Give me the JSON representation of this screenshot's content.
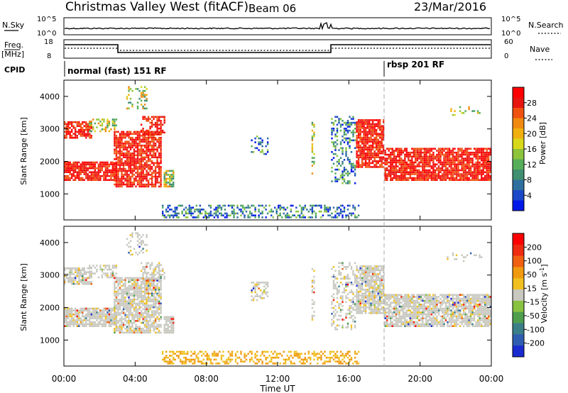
{
  "header": {
    "title": "Christmas Valley West (fitACF)",
    "beam": "Beam 06",
    "date": "23/Mar/2016"
  },
  "top_panels": {
    "nsky_label": "N.Sky",
    "nsearch_label": "N.Search",
    "noise_ticks_left": [
      "10^5",
      "10^0"
    ],
    "noise_ticks_right": [
      "10^5",
      "10^0"
    ],
    "freq_label_1": "Freq.",
    "freq_label_2": "[MHz]",
    "freq_ticks": [
      "18",
      "8"
    ],
    "nave_label": "Nave",
    "nave_ticks": [
      "60",
      "0"
    ],
    "cpid_label": "CPID",
    "cpid_left": "normal (fast) 151 RF",
    "cpid_right": "rbsp 201 RF",
    "cpid_switch_hour": 18
  },
  "chart_data": [
    {
      "type": "heatmap",
      "name": "power",
      "ylabel": "Slant Range [km]",
      "colorbar_label": "Power [dB]",
      "x_range_hours": [
        0,
        24
      ],
      "ylim": [
        200,
        4500
      ],
      "yticks": [
        "4000",
        "3000",
        "2000",
        "1000"
      ],
      "colorbar_ticks": [
        "28",
        "24",
        "20",
        "16",
        "12",
        "8",
        "4"
      ],
      "colors": [
        "#0018e8",
        "#1a48c8",
        "#2f6fa0",
        "#3f8f70",
        "#56ae5a",
        "#8cc43c",
        "#d8d81a",
        "#f0b010",
        "#f08a10",
        "#f05010",
        "#e81410",
        "#ff0000"
      ]
    },
    {
      "type": "heatmap",
      "name": "velocity",
      "ylabel": "Slant Range [km]",
      "colorbar_label": "Velocity [m s^-1]",
      "x_range_hours": [
        0,
        24
      ],
      "ylim": [
        200,
        4500
      ],
      "yticks": [
        "4000",
        "3000",
        "2000",
        "1000"
      ],
      "colorbar_ticks": [
        "200",
        "100",
        "50",
        "15",
        "-15",
        "-50",
        "-100",
        "-200"
      ],
      "colors": [
        "#1a2bd0",
        "#2f5db0",
        "#3a7e88",
        "#4e9e4e",
        "#88c240",
        "#c8c8c0",
        "#f0c020",
        "#f09a10",
        "#f06010",
        "#ee2a10",
        "#ff0000"
      ]
    }
  ],
  "x_axis": {
    "ticks": [
      "00:00",
      "04:00",
      "08:00",
      "12:00",
      "16:00",
      "20:00",
      "00:00"
    ],
    "label": "Time UT"
  }
}
